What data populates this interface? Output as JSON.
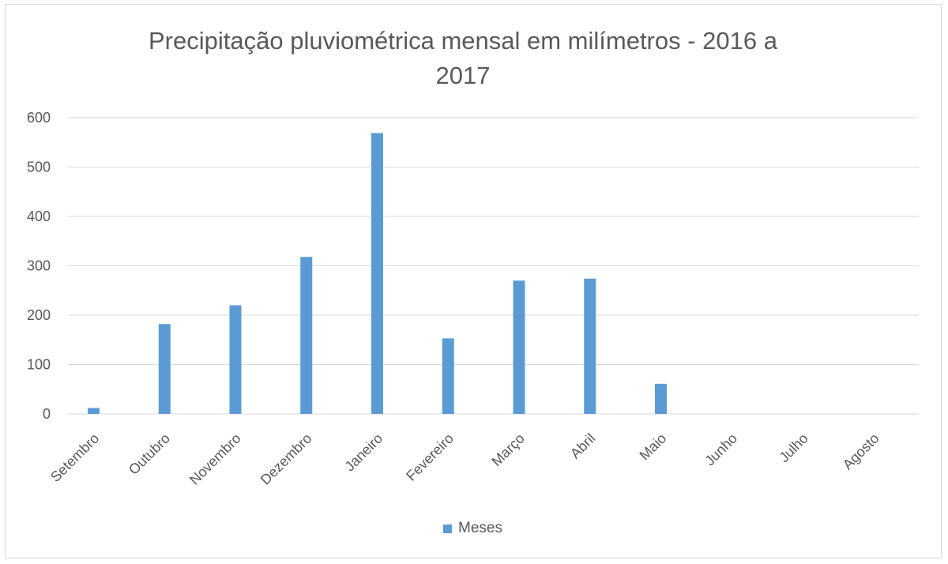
{
  "chart_data": {
    "type": "bar",
    "title_lines": [
      "Precipitação pluviométrica mensal em milímetros - 2016 a",
      "2017"
    ],
    "categories": [
      "Setembro",
      "Outubro",
      "Novembro",
      "Dezembro",
      "Janeiro",
      "Fevereiro",
      "Março",
      "Abril",
      "Maio",
      "Junho",
      "Julho",
      "Agosto"
    ],
    "series": [
      {
        "name": "Meses",
        "color": "#5b9bd5",
        "values": [
          12,
          182,
          220,
          318,
          569,
          153,
          270,
          274,
          61,
          0,
          0,
          0
        ]
      }
    ],
    "yticks": [
      "0",
      "100",
      "200",
      "300",
      "400",
      "500",
      "600"
    ],
    "ylim": [
      0,
      600
    ],
    "grid": true,
    "legend_position": "bottom",
    "gridline_color": "#d9d9d9",
    "text_color": "#595959"
  }
}
